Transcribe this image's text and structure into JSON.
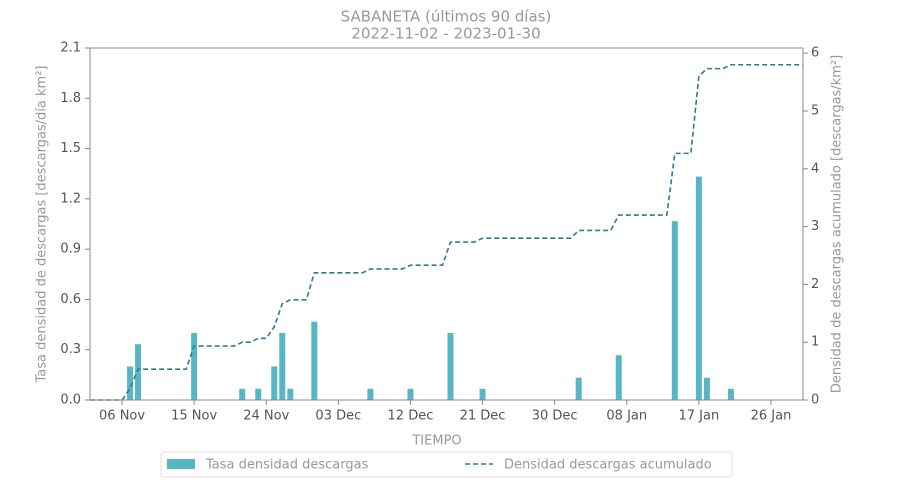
{
  "chart_data": {
    "type": "bar+line",
    "title": "SABANETA (últimos 90 días)",
    "subtitle": "2022-11-02  -  2023-01-30",
    "xlabel": "TIEMPO",
    "ylabel": "Tasa densidad de descargas [descargas/día km²]",
    "y2label": "Densidad de descargas acumulado [descargas/km²]",
    "categories": [
      null,
      null,
      null,
      null,
      "06 Nov",
      null,
      null,
      null,
      null,
      null,
      null,
      null,
      null,
      "15 Nov",
      null,
      null,
      null,
      null,
      null,
      null,
      null,
      null,
      "24 Nov",
      null,
      null,
      null,
      null,
      null,
      null,
      null,
      null,
      "03 Dec",
      null,
      null,
      null,
      null,
      null,
      null,
      null,
      null,
      "12 Dec",
      null,
      null,
      null,
      null,
      null,
      null,
      null,
      null,
      "21 Dec",
      null,
      null,
      null,
      null,
      null,
      null,
      null,
      null,
      "30 Dec",
      null,
      null,
      null,
      null,
      null,
      null,
      null,
      null,
      "08 Jan",
      null,
      null,
      null,
      null,
      null,
      null,
      null,
      null,
      "17 Jan",
      null,
      null,
      null,
      null,
      null,
      null,
      null,
      null,
      "26 Jan",
      null,
      null,
      null,
      null
    ],
    "series": [
      {
        "name": "Tasa densidad descargas",
        "type": "bar",
        "color": "#57b6c4",
        "values": [
          0,
          0,
          0,
          0,
          0,
          0.2,
          0.333,
          0,
          0,
          0,
          0,
          0,
          0,
          0.4,
          0,
          0,
          0,
          0,
          0,
          0.067,
          0,
          0.067,
          0,
          0.2,
          0.4,
          0.067,
          0,
          0,
          0.467,
          0,
          0,
          0,
          0,
          0,
          0,
          0.067,
          0,
          0,
          0,
          0,
          0.067,
          0,
          0,
          0,
          0,
          0.4,
          0,
          0,
          0,
          0.067,
          0,
          0,
          0,
          0,
          0,
          0,
          0,
          0,
          0,
          0,
          0,
          0.133,
          0,
          0,
          0,
          0,
          0.267,
          0,
          0,
          0,
          0,
          0,
          0,
          1.067,
          0,
          0,
          1.333,
          0.133,
          0,
          0,
          0.067,
          0,
          0,
          0,
          0,
          0,
          0,
          0,
          0,
          0
        ]
      },
      {
        "name": "Densidad descargas acumulado",
        "type": "line",
        "axis": "y2",
        "color": "#2e7a93",
        "dashed": true,
        "values": [
          0,
          0,
          0,
          0,
          0,
          0.2,
          0.533,
          0.533,
          0.533,
          0.533,
          0.533,
          0.533,
          0.533,
          0.933,
          0.933,
          0.933,
          0.933,
          0.933,
          0.933,
          1.0,
          1.0,
          1.067,
          1.067,
          1.267,
          1.667,
          1.733,
          1.733,
          1.733,
          2.2,
          2.2,
          2.2,
          2.2,
          2.2,
          2.2,
          2.2,
          2.267,
          2.267,
          2.267,
          2.267,
          2.267,
          2.333,
          2.333,
          2.333,
          2.333,
          2.333,
          2.733,
          2.733,
          2.733,
          2.733,
          2.8,
          2.8,
          2.8,
          2.8,
          2.8,
          2.8,
          2.8,
          2.8,
          2.8,
          2.8,
          2.8,
          2.8,
          2.933,
          2.933,
          2.933,
          2.933,
          2.933,
          3.2,
          3.2,
          3.2,
          3.2,
          3.2,
          3.2,
          3.2,
          4.267,
          4.267,
          4.267,
          5.6,
          5.733,
          5.733,
          5.733,
          5.8,
          5.8,
          5.8,
          5.8,
          5.8,
          5.8,
          5.8,
          5.8,
          5.8,
          5.8
        ]
      }
    ],
    "ylim": [
      0,
      2.1
    ],
    "yticks": [
      {
        "value": 0,
        "label": "0.0"
      },
      0.3,
      0.6,
      0.9,
      1.2,
      1.5,
      1.8,
      2.1
    ],
    "y2lim": [
      0,
      6.09
    ],
    "y2ticks": [
      0,
      1,
      2,
      3,
      4,
      5,
      6
    ],
    "grid": false,
    "legend": "bottom"
  }
}
